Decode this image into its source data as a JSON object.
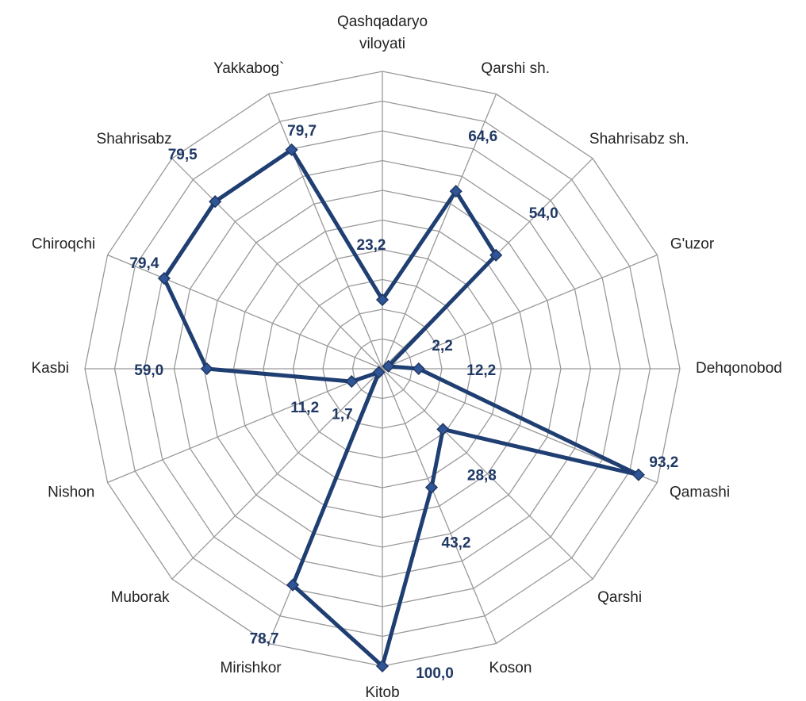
{
  "chart_data": {
    "type": "radar",
    "categories": [
      "Qashqadaryo viloyati",
      "Qarshi sh.",
      "Shahrisabz sh.",
      "G'uzor",
      "Dehqonobod",
      "Qamashi",
      "Qarshi",
      "Koson",
      "Kitob",
      "Mirishkor",
      "Muborak",
      "Nishon",
      "Kasbi",
      "Chiroqchi",
      "Shahrisabz",
      "Yakkabog`"
    ],
    "values": [
      23.2,
      64.6,
      54.0,
      2.2,
      12.2,
      93.2,
      28.8,
      43.2,
      100.0,
      78.7,
      1.7,
      11.2,
      59.0,
      79.4,
      79.5,
      79.7
    ],
    "value_labels": [
      "23,2",
      "64,6",
      "54,0",
      "2,2",
      "12,2",
      "93,2",
      "28,8",
      "43,2",
      "100,0",
      "78,7",
      "1,7",
      "11,2",
      "59,0",
      "79,4",
      "79,5",
      "79,7"
    ],
    "color": "#1f3e72",
    "ylim": [
      0,
      100
    ],
    "yticks": [
      0,
      10,
      20,
      30,
      40,
      50,
      60,
      70,
      80,
      90,
      100
    ],
    "grid": true
  }
}
